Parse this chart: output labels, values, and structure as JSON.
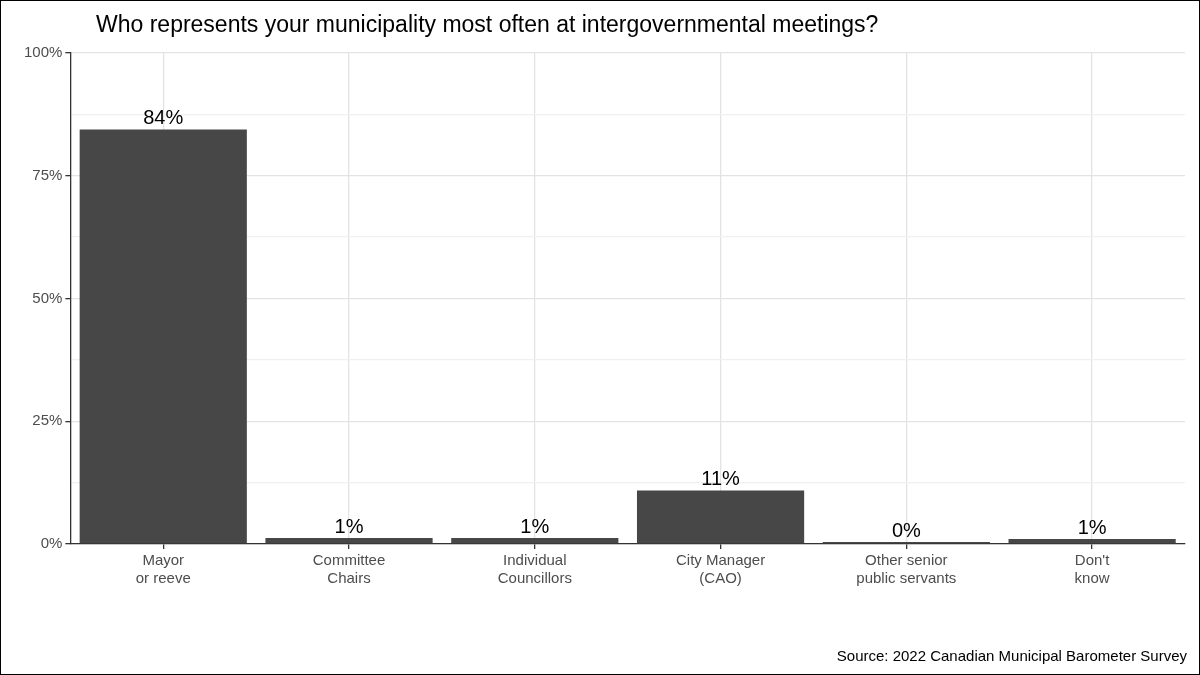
{
  "chart_data": {
    "type": "bar",
    "title": "Who represents your municipality most often at intergovernmental meetings?",
    "categories": [
      "Mayor\nor reeve",
      "Committee\nChairs",
      "Individual\nCouncillors",
      "City Manager\n(CAO)",
      "Other senior\npublic servants",
      "Don't\nknow"
    ],
    "values": [
      84.4,
      1.2,
      1.2,
      10.9,
      0.4,
      1.0
    ],
    "value_labels": [
      "84%",
      "1%",
      "1%",
      "11%",
      "0%",
      "1%"
    ],
    "color": "#474747",
    "ylim": [
      0,
      100
    ],
    "yticks": [
      {
        "value": 0,
        "label": "0%"
      },
      {
        "value": 12.5,
        "label": null
      },
      {
        "value": 25,
        "label": "25%"
      },
      {
        "value": 37.5,
        "label": null
      },
      {
        "value": 50,
        "label": "50%"
      },
      {
        "value": 62.5,
        "label": null
      },
      {
        "value": 75,
        "label": "75%"
      },
      {
        "value": 87.5,
        "label": null
      },
      {
        "value": 100,
        "label": "100%"
      }
    ],
    "grid": true,
    "annotations": [
      "Source: 2022 Canadian Municipal Barometer Survey"
    ]
  }
}
